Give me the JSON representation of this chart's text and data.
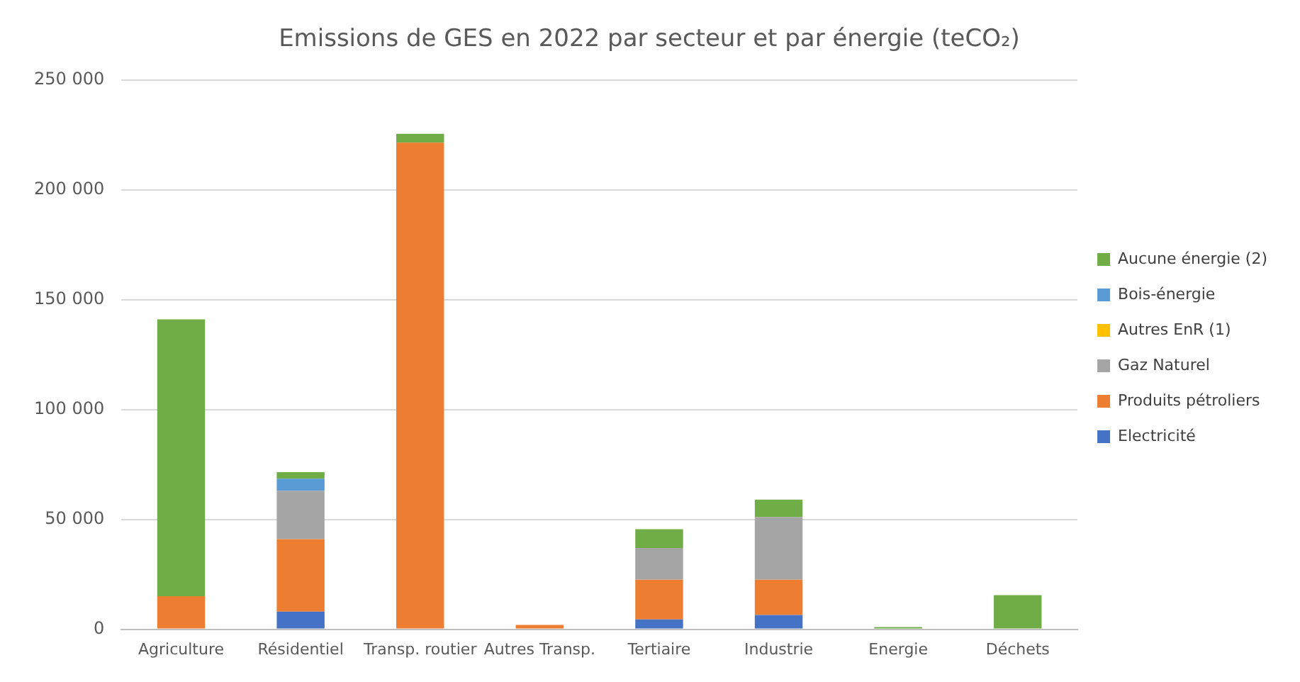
{
  "chart_data": {
    "type": "bar",
    "title": "Emissions de GES en 2022 par secteur et par énergie (teCO₂)",
    "categories": [
      "Agriculture",
      "Résidentiel",
      "Transp. routier",
      "Autres Transp.",
      "Tertiaire",
      "Industrie",
      "Energie",
      "Déchets"
    ],
    "stacked": true,
    "legend": "right",
    "grid": "y",
    "ylim": [
      0,
      250000
    ],
    "yticks": [
      {
        "value": 0,
        "label": "0"
      },
      {
        "value": 50000,
        "label": "50 000"
      },
      {
        "value": 100000,
        "label": "100 000"
      },
      {
        "value": 150000,
        "label": "150 000"
      },
      {
        "value": 200000,
        "label": "200 000"
      },
      {
        "value": 250000,
        "label": "250 000"
      }
    ],
    "series": [
      {
        "name": "Electricité",
        "color": "#4472c4",
        "values": [
          0,
          8000,
          0,
          0,
          4500,
          6500,
          0,
          0
        ]
      },
      {
        "name": "Produits pétroliers",
        "color": "#ed7d31",
        "values": [
          15000,
          33000,
          221500,
          2000,
          18000,
          16000,
          0,
          0
        ]
      },
      {
        "name": "Gaz Naturel",
        "color": "#a5a5a5",
        "values": [
          0,
          22000,
          0,
          0,
          14500,
          28500,
          0,
          0
        ]
      },
      {
        "name": "Autres EnR (1)",
        "color": "#ffc000",
        "values": [
          0,
          0,
          0,
          0,
          0,
          0,
          0,
          0
        ]
      },
      {
        "name": "Bois-énergie",
        "color": "#5b9bd5",
        "values": [
          0,
          5500,
          0,
          0,
          0,
          0,
          0,
          0
        ]
      },
      {
        "name": "Aucune énergie (2)",
        "color": "#70ad47",
        "values": [
          126000,
          3000,
          4000,
          0,
          8500,
          8000,
          1000,
          15500
        ]
      }
    ]
  }
}
